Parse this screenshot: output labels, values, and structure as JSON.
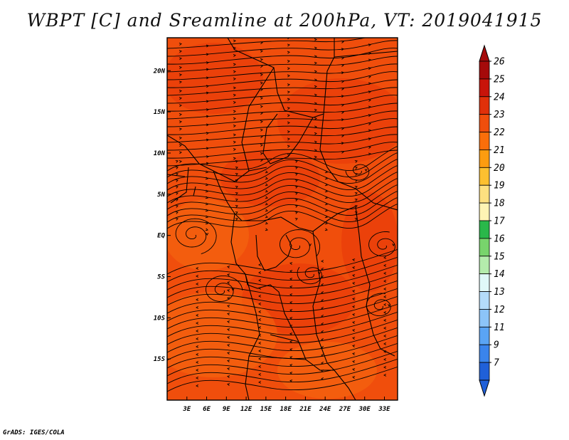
{
  "header": {
    "title": "WBPT [C] and Sreamline at 200hPa, VT: 2019041915"
  },
  "footer": {
    "credit": "GrADS: IGES/COLA"
  },
  "map": {
    "lon_range": [
      0,
      35
    ],
    "lat_range": [
      -20,
      24
    ],
    "x_ticks": [
      {
        "lon": 3,
        "label": "3E"
      },
      {
        "lon": 6,
        "label": "6E"
      },
      {
        "lon": 9,
        "label": "9E"
      },
      {
        "lon": 12,
        "label": "12E"
      },
      {
        "lon": 15,
        "label": "15E"
      },
      {
        "lon": 18,
        "label": "18E"
      },
      {
        "lon": 21,
        "label": "21E"
      },
      {
        "lon": 24,
        "label": "24E"
      },
      {
        "lon": 27,
        "label": "27E"
      },
      {
        "lon": 30,
        "label": "30E"
      },
      {
        "lon": 33,
        "label": "33E"
      }
    ],
    "y_ticks": [
      {
        "lat": 20,
        "label": "20N"
      },
      {
        "lat": 15,
        "label": "15N"
      },
      {
        "lat": 10,
        "label": "10N"
      },
      {
        "lat": 5,
        "label": "5N"
      },
      {
        "lat": 0,
        "label": "EQ"
      },
      {
        "lat": -5,
        "label": "5S"
      },
      {
        "lat": -10,
        "label": "10S"
      },
      {
        "lat": -15,
        "label": "15S"
      }
    ],
    "base_color": "#f04e0c",
    "warm_color": "#e8360a",
    "cool_color": "#f66a10",
    "line_color": "#000000"
  },
  "colorbar": {
    "labels": [
      "26",
      "25",
      "24",
      "23",
      "22",
      "21",
      "20",
      "19",
      "18",
      "17",
      "16",
      "15",
      "14",
      "13",
      "12",
      "11",
      "9",
      "7"
    ],
    "colors": [
      "#a50a0a",
      "#c8140a",
      "#e0300a",
      "#f04e0c",
      "#fa6e0a",
      "#fc9c10",
      "#fcc030",
      "#fde080",
      "#fef4b4",
      "#2ab84a",
      "#78d46c",
      "#b4ecac",
      "#e0f8f8",
      "#b4dcfa",
      "#8cc4f8",
      "#5aa4f4",
      "#3a84ec",
      "#2060d8"
    ]
  }
}
